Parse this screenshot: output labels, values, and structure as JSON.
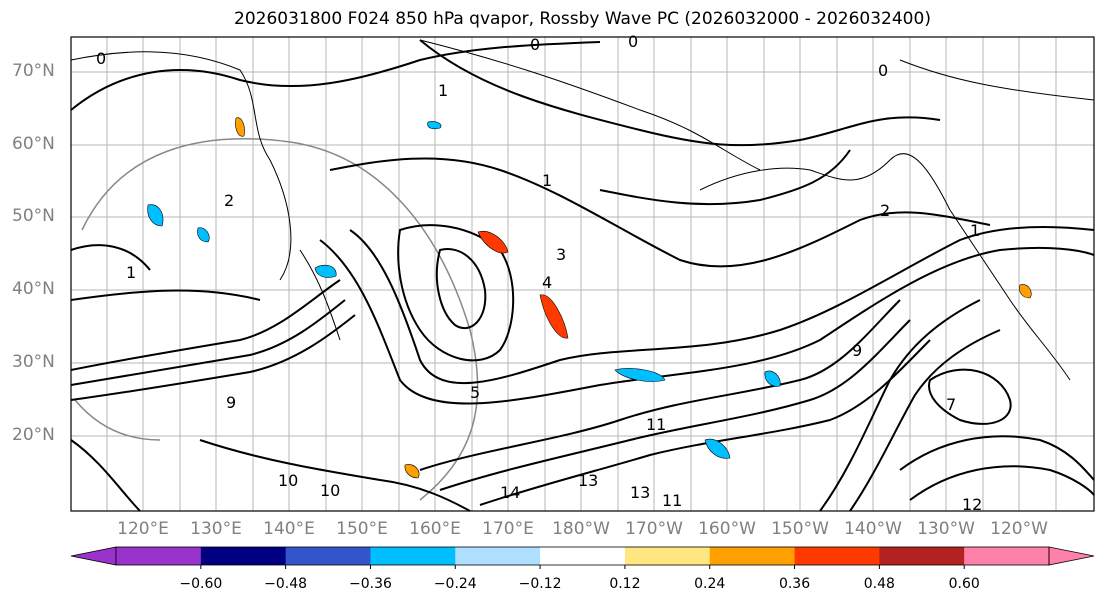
{
  "title": "2026031800 F024 850 hPa qvapor, Rossby Wave PC (2026032000 - 2026032400)",
  "lat_labels": [
    "70°N",
    "60°N",
    "50°N",
    "40°N",
    "30°N",
    "20°N"
  ],
  "lon_labels": [
    "120°E",
    "130°E",
    "140°E",
    "150°E",
    "160°E",
    "170°E",
    "180°W",
    "170°W",
    "160°W",
    "150°W",
    "140°W",
    "130°W",
    "120°W"
  ],
  "colorbar": {
    "ticks": [
      "−0.60",
      "−0.48",
      "−0.36",
      "−0.24",
      "−0.12",
      "0.12",
      "0.24",
      "0.36",
      "0.48",
      "0.60"
    ],
    "colors": [
      "#9933cc",
      "#000080",
      "#3355cc",
      "#00bfff",
      "#b0e0ff",
      "#ffffff",
      "#ffe680",
      "#ffa000",
      "#ff3a00",
      "#b22222",
      "#ff80a8",
      "#ff80a8"
    ]
  },
  "contour_labels": [
    "0",
    "0",
    "0",
    "0",
    "1",
    "1",
    "1",
    "1",
    "2",
    "2",
    "3",
    "4",
    "5",
    "7",
    "9",
    "9",
    "10",
    "10",
    "11",
    "11",
    "12",
    "13",
    "13",
    "14"
  ]
}
